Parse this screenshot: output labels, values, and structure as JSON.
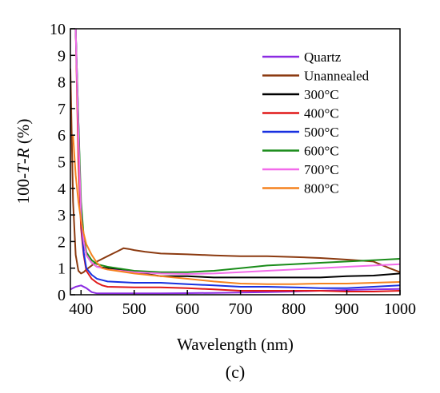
{
  "caption": "(c)",
  "chart_data": {
    "type": "line",
    "title": "",
    "xlabel": "Wavelength (nm)",
    "ylabel_prefix": "100-",
    "ylabel_T": "T",
    "ylabel_mid": "-",
    "ylabel_R": "R",
    "ylabel_suffix": " (%)",
    "xlim": [
      380,
      1000
    ],
    "ylim": [
      0,
      10
    ],
    "x_ticks": [
      400,
      500,
      600,
      700,
      800,
      900,
      1000
    ],
    "y_ticks": [
      0,
      1,
      2,
      3,
      4,
      5,
      6,
      7,
      8,
      9,
      10
    ],
    "grid": false,
    "legend_position": "top-right",
    "series": [
      {
        "name": "Quartz",
        "color": "#8B2BE2",
        "x": [
          380,
          390,
          400,
          410,
          420,
          430,
          450,
          500,
          550,
          600,
          650,
          700,
          750,
          800,
          850,
          900,
          950,
          1000
        ],
        "y": [
          0.2,
          0.3,
          0.35,
          0.25,
          0.1,
          0.05,
          0.05,
          0.05,
          0.05,
          0.06,
          0.07,
          0.08,
          0.1,
          0.12,
          0.15,
          0.18,
          0.2,
          0.22
        ]
      },
      {
        "name": "Unannealed",
        "color": "#8B3A10",
        "x": [
          380,
          385,
          390,
          395,
          400,
          405,
          410,
          420,
          430,
          440,
          450,
          460,
          470,
          480,
          490,
          500,
          520,
          550,
          600,
          650,
          700,
          750,
          800,
          850,
          900,
          950,
          980,
          1000
        ],
        "y": [
          8.5,
          3.5,
          1.5,
          0.9,
          0.8,
          0.85,
          0.95,
          1.1,
          1.25,
          1.35,
          1.45,
          1.55,
          1.65,
          1.75,
          1.72,
          1.68,
          1.62,
          1.55,
          1.52,
          1.48,
          1.45,
          1.45,
          1.42,
          1.38,
          1.32,
          1.25,
          1.0,
          0.85
        ]
      },
      {
        "name": "300°C",
        "color": "#000000",
        "x": [
          390,
          395,
          400,
          405,
          410,
          420,
          430,
          450,
          500,
          550,
          600,
          650,
          700,
          750,
          800,
          850,
          900,
          950,
          1000
        ],
        "y": [
          10,
          6.0,
          3.0,
          2.0,
          1.5,
          1.2,
          1.05,
          1.0,
          0.85,
          0.7,
          0.7,
          0.65,
          0.65,
          0.65,
          0.65,
          0.65,
          0.7,
          0.72,
          0.8
        ]
      },
      {
        "name": "400°C",
        "color": "#E01818",
        "x": [
          390,
          395,
          400,
          405,
          410,
          420,
          430,
          440,
          450,
          500,
          550,
          600,
          650,
          700,
          750,
          800,
          850,
          900,
          950,
          1000
        ],
        "y": [
          10,
          5.0,
          2.5,
          1.5,
          0.9,
          0.6,
          0.45,
          0.35,
          0.3,
          0.28,
          0.28,
          0.25,
          0.2,
          0.15,
          0.15,
          0.15,
          0.15,
          0.12,
          0.12,
          0.15
        ]
      },
      {
        "name": "500°C",
        "color": "#1830E0",
        "x": [
          390,
          395,
          400,
          405,
          410,
          420,
          430,
          440,
          450,
          500,
          550,
          600,
          650,
          700,
          750,
          800,
          850,
          900,
          950,
          1000
        ],
        "y": [
          10,
          6.5,
          3.0,
          1.6,
          1.0,
          0.75,
          0.6,
          0.55,
          0.5,
          0.45,
          0.45,
          0.4,
          0.35,
          0.3,
          0.3,
          0.28,
          0.25,
          0.25,
          0.3,
          0.35
        ]
      },
      {
        "name": "600°C",
        "color": "#1A8C1A",
        "x": [
          390,
          395,
          400,
          405,
          410,
          420,
          430,
          450,
          500,
          550,
          600,
          650,
          700,
          750,
          800,
          850,
          900,
          950,
          1000
        ],
        "y": [
          10,
          6.5,
          3.5,
          2.2,
          1.6,
          1.3,
          1.15,
          1.05,
          0.9,
          0.85,
          0.85,
          0.9,
          1.0,
          1.1,
          1.15,
          1.2,
          1.25,
          1.3,
          1.35
        ]
      },
      {
        "name": "700°C",
        "color": "#F26BEA",
        "x": [
          390,
          395,
          400,
          405,
          410,
          420,
          430,
          450,
          500,
          550,
          600,
          650,
          700,
          750,
          800,
          850,
          900,
          950,
          1000
        ],
        "y": [
          10,
          6.0,
          3.0,
          2.0,
          1.5,
          1.2,
          1.05,
          0.95,
          0.85,
          0.8,
          0.78,
          0.8,
          0.85,
          0.9,
          0.95,
          1.0,
          1.05,
          1.1,
          1.15
        ]
      },
      {
        "name": "800°C",
        "color": "#F5821F",
        "x": [
          385,
          390,
          395,
          400,
          405,
          410,
          420,
          430,
          440,
          450,
          500,
          550,
          600,
          650,
          700,
          750,
          800,
          850,
          900,
          950,
          1000
        ],
        "y": [
          6.0,
          4.5,
          3.5,
          2.8,
          2.3,
          1.9,
          1.5,
          1.2,
          1.0,
          0.95,
          0.8,
          0.7,
          0.6,
          0.5,
          0.42,
          0.4,
          0.4,
          0.42,
          0.42,
          0.45,
          0.48
        ]
      }
    ]
  }
}
